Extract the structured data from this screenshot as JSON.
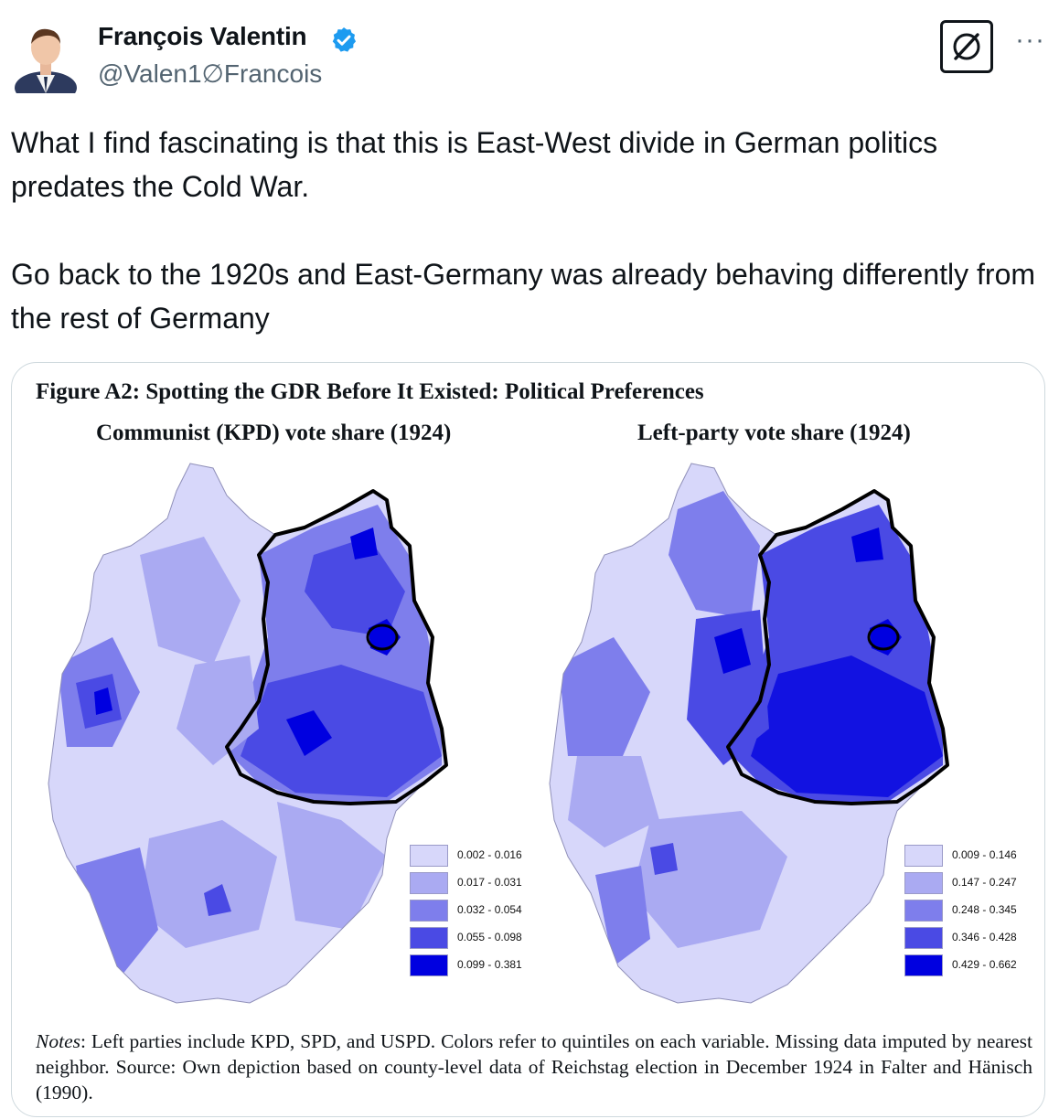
{
  "author": {
    "name": "François Valentin",
    "handle": "@Valen1∅Francois",
    "verified_color": "#1d9bf0"
  },
  "actions": {
    "grok_icon": "grok-icon",
    "more_label": "···"
  },
  "tweet": {
    "line1": "What I find fascinating is that this is East-West divide in German politics predates the Cold War.",
    "line2": "Go back to the 1920s and East-Germany was already behaving differently from the rest of Germany"
  },
  "figure": {
    "title": "Figure A2: Spotting the GDR Before It Existed: Political Preferences",
    "left_map": {
      "title": "Communist (KPD) vote share (1924)",
      "legend": [
        {
          "label": "0.002 - 0.016",
          "color": "#d7d7fa"
        },
        {
          "label": "0.017 - 0.031",
          "color": "#aaaaf2"
        },
        {
          "label": "0.032 - 0.054",
          "color": "#7e7eec"
        },
        {
          "label": "0.055 - 0.098",
          "color": "#4a4ae4"
        },
        {
          "label": "0.099 - 0.381",
          "color": "#0000e0"
        }
      ]
    },
    "right_map": {
      "title": "Left-party vote share (1924)",
      "legend": [
        {
          "label": "0.009 - 0.146",
          "color": "#d7d7fa"
        },
        {
          "label": "0.147 - 0.247",
          "color": "#aaaaf2"
        },
        {
          "label": "0.248 - 0.345",
          "color": "#7e7eec"
        },
        {
          "label": "0.346 - 0.428",
          "color": "#4a4ae4"
        },
        {
          "label": "0.429 - 0.662",
          "color": "#0000e0"
        }
      ]
    },
    "notes_label": "Notes",
    "notes_text": ": Left parties include KPD, SPD, and USPD. Colors refer to quintiles on each variable. Missing data imputed by nearest neighbor. Source: Own depiction based on county-level data of Reichstag election in December 1924 in Falter and Hänisch (1990)."
  }
}
